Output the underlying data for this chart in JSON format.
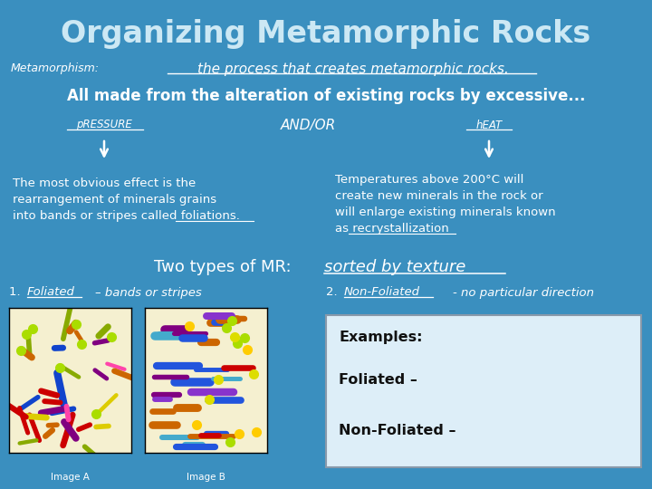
{
  "bg_color": "#3a8fbf",
  "title": "Organizing Metamorphic Rocks",
  "title_color": "#cce8f4",
  "title_fontsize": 26,
  "metamorphism_label": "Metamorphism:",
  "metamorphism_def": "the process that creates metamorphic rocks.",
  "all_made_text": "All made from the alteration of existing rocks by excessive...",
  "pressure_label": "pRESSURE",
  "andor_label": "AND/OR",
  "heat_label": "hEAT",
  "two_types_plain": "Two types of MR: ",
  "two_types_italic": "sorted by texture",
  "foliated_label": "Foliated",
  "foliated_desc": "– bands or stripes",
  "nonfoliated_label": "Non-Foliated",
  "nonfoliated_desc": "- no particular direction",
  "examples_title": "Examples:",
  "foliated_ex": "Foliated –",
  "nonfoliated_ex": "Non-Foliated –",
  "text_color": "#ffffff",
  "box_bg": "#ddeeff",
  "box_border": "#aabbcc",
  "imageA_label": "Image A",
  "imageB_label": "Image B",
  "imageA_bg": "#f5f0d0",
  "imageB_bg": "#f5f0d0"
}
